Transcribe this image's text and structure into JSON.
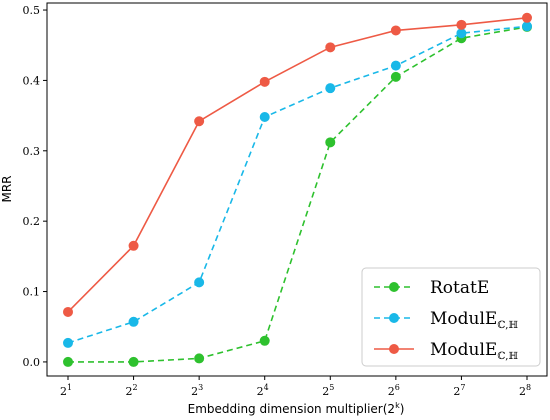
{
  "chart_data": {
    "type": "line",
    "title": "",
    "xlabel": "Embedding dimension multiplier",
    "xlabel_suffix": "(2^k)",
    "ylabel": "MRR",
    "x_exponents": [
      1,
      2,
      3,
      4,
      5,
      6,
      7,
      8
    ],
    "x_tick_base": "2",
    "y_ticks": [
      0.0,
      0.1,
      0.2,
      0.3,
      0.4,
      0.5
    ],
    "y_tick_labels": [
      "0.0",
      "0.1",
      "0.2",
      "0.3",
      "0.4",
      "0.5"
    ],
    "ylim": [
      -0.02,
      0.51
    ],
    "grid": false,
    "legend_position": "lower-right",
    "series": [
      {
        "name": "RotatE",
        "color": "#2ec12e",
        "style": "dashed",
        "values": [
          0.0,
          0.0,
          0.005,
          0.03,
          0.312,
          0.405,
          0.46,
          0.476
        ]
      },
      {
        "name": "ModulE",
        "subscript": "ℂ,ℍ",
        "color": "#19b8e8",
        "style": "dashed",
        "values": [
          0.027,
          0.057,
          0.113,
          0.348,
          0.389,
          0.421,
          0.467,
          0.477
        ]
      },
      {
        "name": "ModulE",
        "subscript": "ℂ,ℍ",
        "color": "#ee5a45",
        "style": "solid",
        "values": [
          0.071,
          0.165,
          0.342,
          0.398,
          0.447,
          0.471,
          0.479,
          0.489
        ]
      }
    ]
  }
}
